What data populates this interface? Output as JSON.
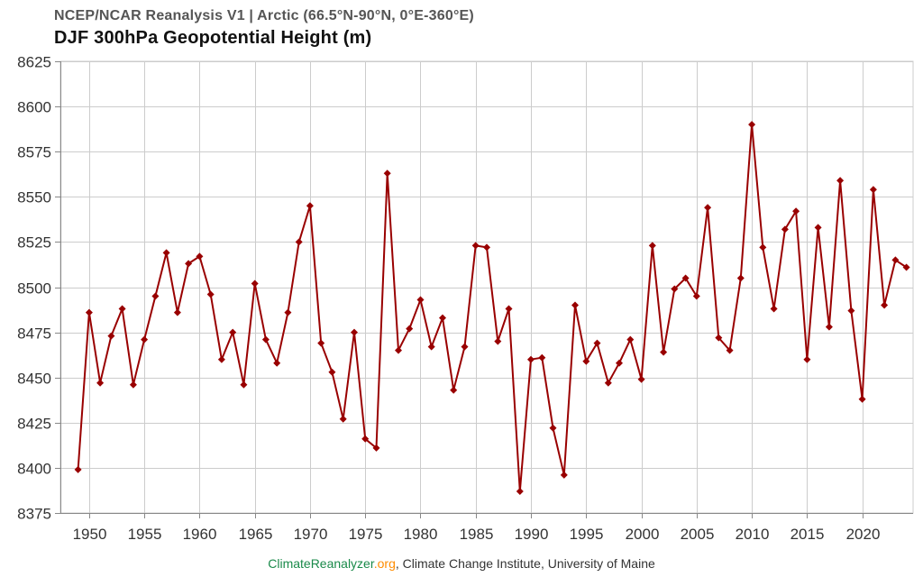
{
  "header": {
    "subtitle": "NCEP/NCAR Reanalysis V1 | Arctic (66.5°N-90°N, 0°E-360°E)",
    "title": "DJF 300hPa Geopotential Height (m)"
  },
  "footer": {
    "brand_name": "ClimateReanalyzer",
    "brand_domain": ".org",
    "rest": ", Climate Change Institute, University of Maine"
  },
  "colors": {
    "series": "#990000",
    "grid": "#cccccc",
    "axis": "#888888",
    "tick_text": "#333333"
  },
  "chart_data": {
    "type": "line",
    "title": "DJF 300hPa Geopotential Height (m)",
    "subtitle": "NCEP/NCAR Reanalysis V1 | Arctic (66.5°N-90°N, 0°E-360°E)",
    "xlabel": "",
    "ylabel": "",
    "xlim": [
      1947.4,
      2024.6
    ],
    "ylim": [
      8375,
      8625
    ],
    "xticks": [
      1950,
      1955,
      1960,
      1965,
      1970,
      1975,
      1980,
      1985,
      1990,
      1995,
      2000,
      2005,
      2010,
      2015,
      2020
    ],
    "yticks": [
      8375,
      8400,
      8425,
      8450,
      8475,
      8500,
      8525,
      8550,
      8575,
      8600,
      8625
    ],
    "grid": true,
    "series": [
      {
        "name": "DJF 300hPa Geopotential Height",
        "marker": "diamond",
        "x": [
          1949,
          1950,
          1951,
          1952,
          1953,
          1954,
          1955,
          1956,
          1957,
          1958,
          1959,
          1960,
          1961,
          1962,
          1963,
          1964,
          1965,
          1966,
          1967,
          1968,
          1969,
          1970,
          1971,
          1972,
          1973,
          1974,
          1975,
          1976,
          1977,
          1978,
          1979,
          1980,
          1981,
          1982,
          1983,
          1984,
          1985,
          1986,
          1987,
          1988,
          1989,
          1990,
          1991,
          1992,
          1993,
          1994,
          1995,
          1996,
          1997,
          1998,
          1999,
          2000,
          2001,
          2002,
          2003,
          2004,
          2005,
          2006,
          2007,
          2008,
          2009,
          2010,
          2011,
          2012,
          2013,
          2014,
          2015,
          2016,
          2017,
          2018,
          2019,
          2020,
          2021,
          2022,
          2023,
          2024
        ],
        "values": [
          8399,
          8486,
          8447,
          8473,
          8488,
          8446,
          8471,
          8495,
          8519,
          8486,
          8513,
          8517,
          8496,
          8460,
          8475,
          8446,
          8502,
          8471,
          8458,
          8486,
          8525,
          8545,
          8469,
          8453,
          8427,
          8475,
          8416,
          8411,
          8563,
          8465,
          8477,
          8493,
          8467,
          8483,
          8443,
          8467,
          8523,
          8522,
          8470,
          8488,
          8387,
          8460,
          8461,
          8422,
          8396,
          8490,
          8459,
          8469,
          8447,
          8458,
          8471,
          8449,
          8523,
          8464,
          8499,
          8505,
          8495,
          8544,
          8472,
          8465,
          8505,
          8590,
          8522,
          8488,
          8532,
          8542,
          8460,
          8533,
          8478,
          8559,
          8487,
          8438,
          8554,
          8490,
          8515,
          8511
        ]
      }
    ]
  }
}
